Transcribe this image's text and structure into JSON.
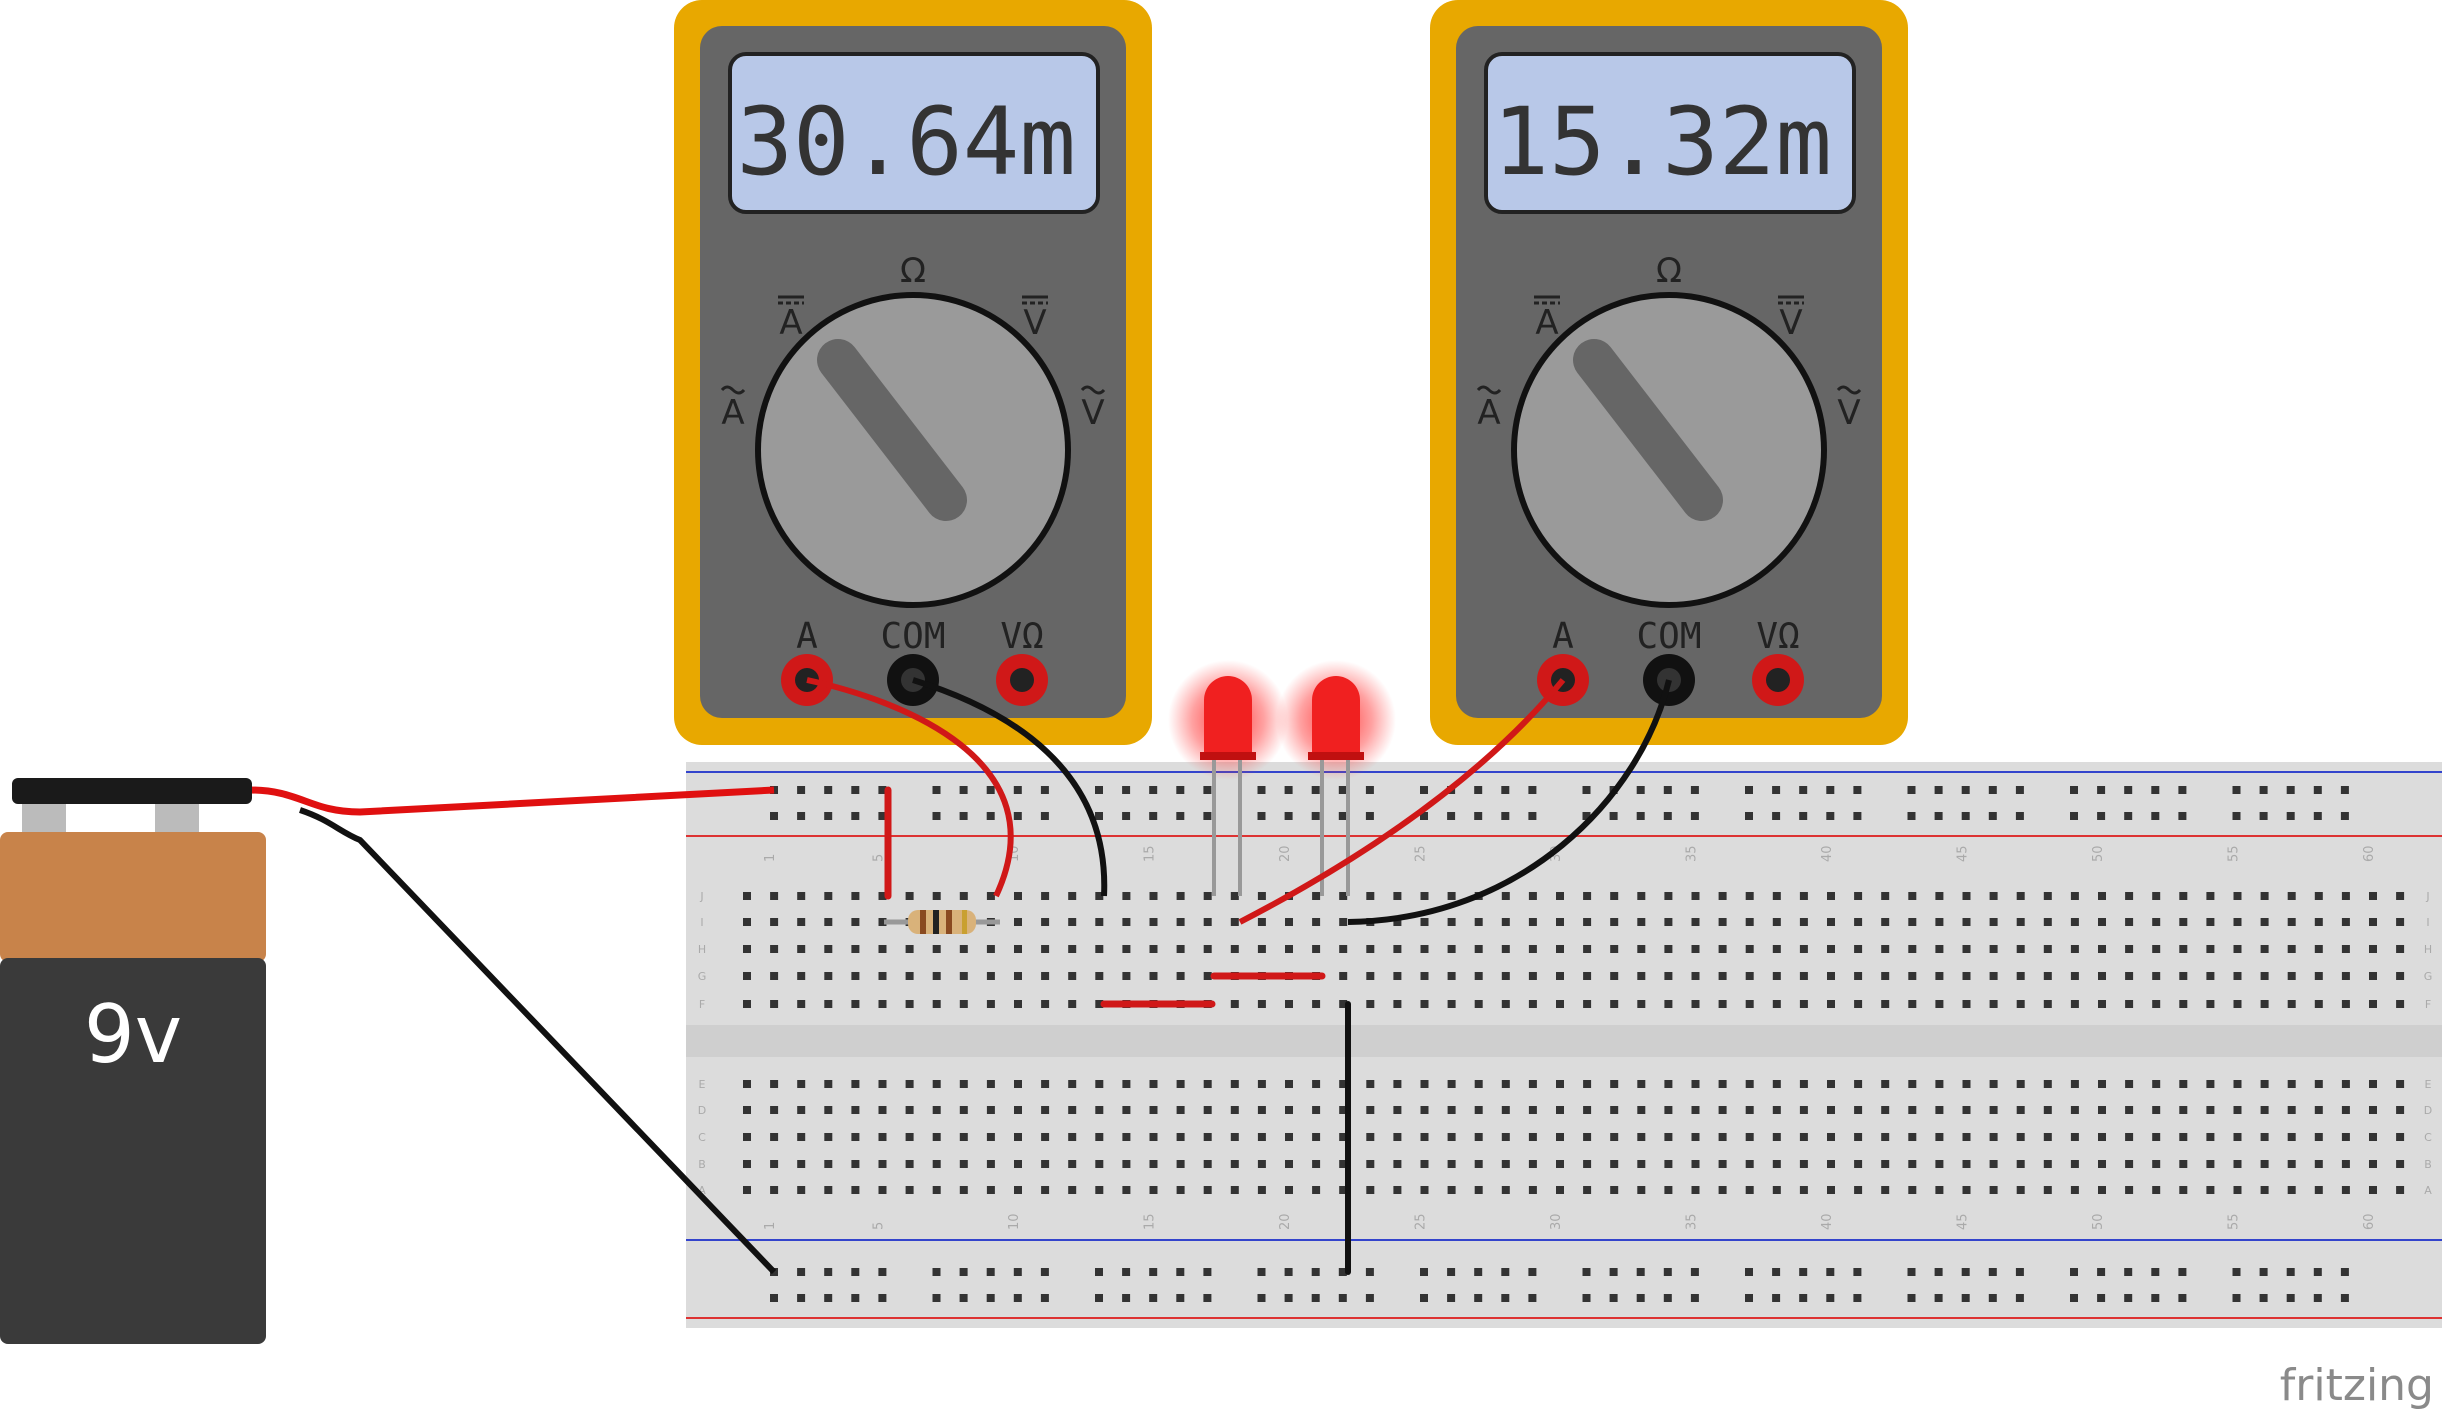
{
  "multimeter_left": {
    "display": "30.64m",
    "dial": {
      "ohm": "Ω",
      "dc_amps": "A",
      "dc_volts": "V",
      "ac_amps": "A",
      "ac_volts": "V"
    },
    "jacks": {
      "a": "A",
      "com": "COM",
      "v_ohm": "VΩ"
    }
  },
  "multimeter_right": {
    "display": "15.32m",
    "dial": {
      "ohm": "Ω",
      "dc_amps": "A",
      "dc_volts": "V",
      "ac_amps": "A",
      "ac_volts": "V"
    },
    "jacks": {
      "a": "A",
      "com": "COM",
      "v_ohm": "VΩ"
    }
  },
  "battery": {
    "label": "9v"
  },
  "breadboard": {
    "column_numbers": [
      "1",
      "5",
      "10",
      "15",
      "20",
      "25",
      "30",
      "35",
      "40",
      "45",
      "50",
      "55",
      "60"
    ],
    "row_letters_top": [
      "J",
      "I",
      "H",
      "G",
      "F"
    ],
    "row_letters_bottom": [
      "E",
      "D",
      "C",
      "B",
      "A"
    ]
  },
  "brand": "fritzing",
  "colors": {
    "meter_body": "#E8A800",
    "meter_face": "#666666",
    "lcd": "#B8C8E8",
    "wire_red": "#E01010",
    "wire_black": "#111111",
    "led_red": "#F02020",
    "battery_copper": "#C8834A",
    "battery_body": "#3a3a3a"
  }
}
